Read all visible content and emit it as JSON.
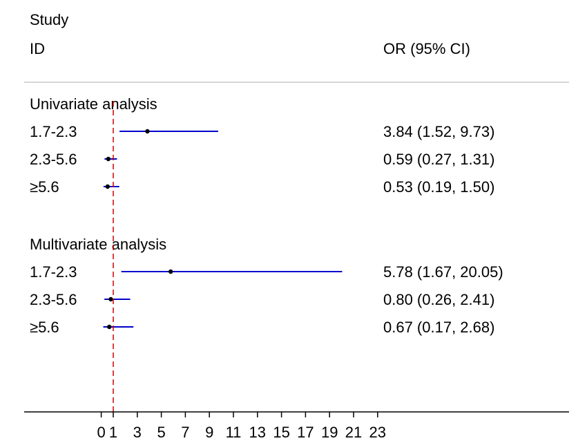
{
  "header": {
    "line1": "Study",
    "line2": "ID",
    "effect_label": "OR (95% CI)"
  },
  "chart_data": {
    "type": "forest",
    "x_ticks": [
      0,
      1,
      3,
      5,
      7,
      9,
      11,
      13,
      15,
      17,
      19,
      21,
      23
    ],
    "reference_line": 1,
    "groups": [
      {
        "label": "Univariate analysis",
        "rows": [
          {
            "label": "1.7-2.3",
            "or": 3.84,
            "lo": 1.52,
            "hi": 9.73,
            "text": "3.84 (1.52, 9.73)"
          },
          {
            "label": "2.3-5.6",
            "or": 0.59,
            "lo": 0.27,
            "hi": 1.31,
            "text": "0.59 (0.27, 1.31)"
          },
          {
            "label": "≥5.6",
            "or": 0.53,
            "lo": 0.19,
            "hi": 1.5,
            "text": "0.53 (0.19, 1.50)"
          }
        ]
      },
      {
        "label": "Multivariate analysis",
        "rows": [
          {
            "label": "1.7-2.3",
            "or": 5.78,
            "lo": 1.67,
            "hi": 20.05,
            "text": "5.78 (1.67, 20.05)"
          },
          {
            "label": "2.3-5.6",
            "or": 0.8,
            "lo": 0.26,
            "hi": 2.41,
            "text": "0.80 (0.26, 2.41)"
          },
          {
            "label": "≥5.6",
            "or": 0.67,
            "lo": 0.17,
            "hi": 2.68,
            "text": "0.67 (0.17, 2.68)"
          }
        ]
      }
    ],
    "colors": {
      "ci_line": "#0000cc",
      "point": "#000000",
      "reference_line": "#cc0000",
      "separator": "#c8c8c8",
      "axis": "#000000"
    }
  }
}
